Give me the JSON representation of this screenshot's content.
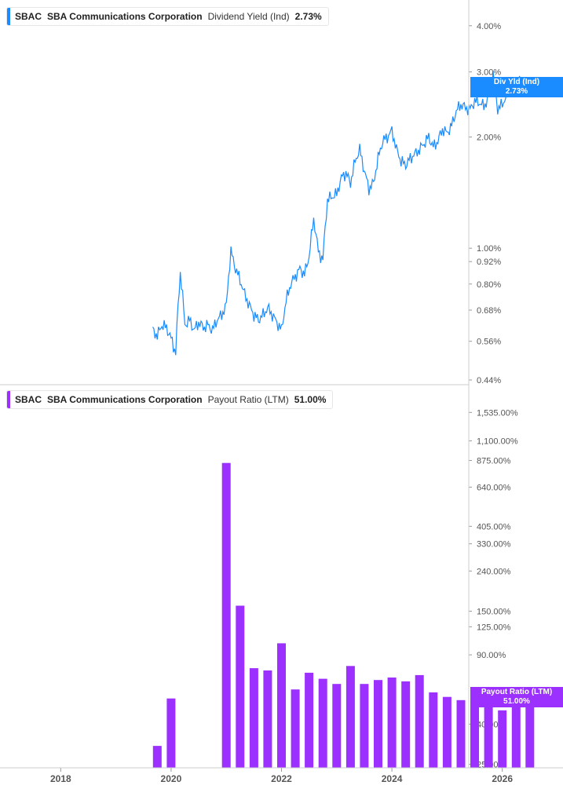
{
  "panels": {
    "top": {
      "ticker": "SBAC",
      "company": "SBA Communications Corporation",
      "metric": "Dividend Yield (Ind)",
      "value": "2.73%",
      "tag_line1": "Div Yld (Ind)",
      "tag_line2": "2.73%",
      "color": "#1a8cff"
    },
    "bottom": {
      "ticker": "SBAC",
      "company": "SBA Communications Corporation",
      "metric": "Payout Ratio (LTM)",
      "value": "51.00%",
      "tag_line1": "Payout Ratio (LTM)",
      "tag_line2": "51.00%",
      "color": "#9b30ff"
    }
  },
  "chart_data": [
    {
      "type": "line",
      "title": "",
      "series_color": "#1a8cff",
      "y_scale": "log",
      "ylim": [
        0.44,
        4.3
      ],
      "y_ticks": [
        "4.00%",
        "3.00%",
        "2.00%",
        "1.00%",
        "0.92%",
        "0.80%",
        "0.68%",
        "0.56%",
        "0.44%"
      ],
      "y_tick_values": [
        4.0,
        3.0,
        2.0,
        1.0,
        0.92,
        0.8,
        0.68,
        0.56,
        0.44
      ],
      "x": [
        "2019-09",
        "2019-10",
        "2019-11",
        "2019-12",
        "2020-01",
        "2020-02",
        "2020-03",
        "2020-04",
        "2020-05",
        "2020-06",
        "2020-07",
        "2020-08",
        "2020-09",
        "2020-10",
        "2020-11",
        "2020-12",
        "2021-01",
        "2021-02",
        "2021-03",
        "2021-04",
        "2021-05",
        "2021-06",
        "2021-07",
        "2021-08",
        "2021-09",
        "2021-10",
        "2021-11",
        "2021-12",
        "2022-01",
        "2022-02",
        "2022-03",
        "2022-04",
        "2022-05",
        "2022-06",
        "2022-07",
        "2022-08",
        "2022-09",
        "2022-10",
        "2022-11",
        "2022-12",
        "2023-01",
        "2023-02",
        "2023-03",
        "2023-04",
        "2023-05",
        "2023-06",
        "2023-07",
        "2023-08",
        "2023-09",
        "2023-10",
        "2023-11",
        "2023-12",
        "2024-01",
        "2024-02",
        "2024-03",
        "2024-04",
        "2024-05",
        "2024-06",
        "2024-07",
        "2024-08",
        "2024-09",
        "2024-10",
        "2024-11",
        "2024-12",
        "2025-01",
        "2025-02",
        "2025-03",
        "2025-04",
        "2025-05",
        "2025-06",
        "2025-07",
        "2025-08",
        "2025-09",
        "2025-10",
        "2025-11",
        "2025-12",
        "2026-01",
        "2026-02",
        "2026-03",
        "2026-04",
        "2026-05",
        "2026-06",
        "2026-07",
        "2026-08",
        "2026-09"
      ],
      "values": [
        0.6,
        0.58,
        0.62,
        0.61,
        0.57,
        0.52,
        0.86,
        0.62,
        0.64,
        0.6,
        0.63,
        0.61,
        0.62,
        0.6,
        0.64,
        0.66,
        0.7,
        0.98,
        0.88,
        0.82,
        0.75,
        0.7,
        0.66,
        0.64,
        0.66,
        0.69,
        0.66,
        0.63,
        0.6,
        0.72,
        0.8,
        0.84,
        0.88,
        0.85,
        0.95,
        1.2,
        0.98,
        0.93,
        1.35,
        1.38,
        1.4,
        1.55,
        1.6,
        1.5,
        1.72,
        1.85,
        1.62,
        1.45,
        1.5,
        1.75,
        1.95,
        2.0,
        2.08,
        1.85,
        1.72,
        1.68,
        1.75,
        1.8,
        1.85,
        1.92,
        2.0,
        1.88,
        1.95,
        2.1,
        2.05,
        2.15,
        2.35,
        2.45,
        2.4,
        2.38,
        2.5,
        2.48,
        2.42,
        2.55,
        2.95,
        2.38,
        2.45,
        2.6,
        2.7,
        2.8,
        2.85,
        2.78,
        2.73,
        2.76,
        2.73
      ]
    },
    {
      "type": "bar",
      "title": "",
      "series_color": "#9b30ff",
      "y_scale": "log",
      "ylim": [
        24,
        1850
      ],
      "y_ticks": [
        "1,535.00%",
        "1,100.00%",
        "875.00%",
        "640.00%",
        "405.00%",
        "330.00%",
        "240.00%",
        "150.00%",
        "125.00%",
        "90.00%",
        "40.00%",
        "25.00%"
      ],
      "y_tick_values": [
        1535,
        1100,
        875,
        640,
        405,
        330,
        240,
        150,
        125,
        90,
        40,
        25
      ],
      "x_ticks": [
        "2018",
        "2020",
        "2022",
        "2024",
        "2026"
      ],
      "x_tick_years": [
        2018,
        2020,
        2022,
        2024,
        2026
      ],
      "x_range": [
        2016.9,
        2027.1
      ],
      "x": [
        2019.75,
        2020.0,
        2021.0,
        2021.25,
        2021.5,
        2021.75,
        2022.0,
        2022.25,
        2022.5,
        2022.75,
        2023.0,
        2023.25,
        2023.5,
        2023.75,
        2024.0,
        2024.25,
        2024.5,
        2024.75,
        2025.0,
        2025.25,
        2025.5,
        2025.75,
        2026.0,
        2026.25,
        2026.5
      ],
      "values": [
        31,
        54,
        850,
        160,
        77,
        75,
        103,
        60,
        73,
        68,
        64,
        79,
        64,
        67,
        69,
        66,
        71,
        58,
        55,
        53,
        51,
        53,
        47,
        49,
        51
      ]
    }
  ]
}
